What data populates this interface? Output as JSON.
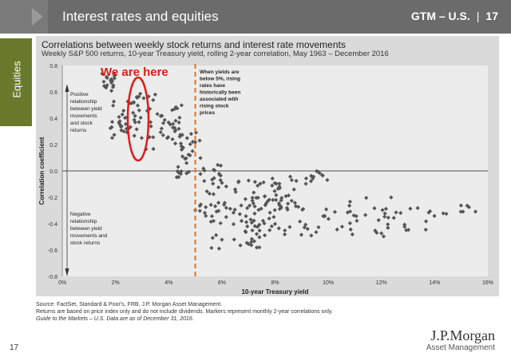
{
  "header": {
    "title": "Interest rates and equities",
    "region": "GTM – U.S.",
    "page": "17"
  },
  "side_tab": "Equities",
  "chart_data": {
    "type": "scatter",
    "title": "Correlations between weekly stock returns and interest rate movements",
    "subtitle": "Weekly S&P 500 returns, 10-year Treasury yield, rolling 2-year correlation, May 1963 – December 2016",
    "xlabel": "10-year Treasury yield",
    "ylabel": "Correlation coefficient",
    "xlim": [
      0,
      16
    ],
    "ylim": [
      -0.8,
      0.8
    ],
    "xticks": [
      "0%",
      "2%",
      "4%",
      "6%",
      "8%",
      "10%",
      "12%",
      "14%",
      "16%"
    ],
    "yticks": [
      "0.8",
      "0.6",
      "0.4",
      "0.2",
      "0.0",
      "-0.2",
      "-0.4",
      "-0.6",
      "-0.8"
    ],
    "marker_color": "#555555",
    "clusters": [
      {
        "x": [
          1.5,
          2.0
        ],
        "y": [
          0.6,
          0.75
        ],
        "n": 18
      },
      {
        "x": [
          1.8,
          2.8
        ],
        "y": [
          0.25,
          0.55
        ],
        "n": 35
      },
      {
        "x": [
          2.8,
          3.5
        ],
        "y": [
          0.15,
          0.6
        ],
        "n": 22
      },
      {
        "x": [
          3.5,
          4.5
        ],
        "y": [
          0.2,
          0.5
        ],
        "n": 30
      },
      {
        "x": [
          4.3,
          5.2
        ],
        "y": [
          -0.05,
          0.3
        ],
        "n": 30
      },
      {
        "x": [
          5.0,
          6.0
        ],
        "y": [
          -0.35,
          0.05
        ],
        "n": 30
      },
      {
        "x": [
          5.5,
          7.5
        ],
        "y": [
          -0.6,
          -0.25
        ],
        "n": 40
      },
      {
        "x": [
          6.0,
          8.5
        ],
        "y": [
          -0.3,
          -0.05
        ],
        "n": 40
      },
      {
        "x": [
          7.0,
          9.0
        ],
        "y": [
          -0.5,
          -0.1
        ],
        "n": 40
      },
      {
        "x": [
          8.5,
          10.0
        ],
        "y": [
          -0.1,
          0.0
        ],
        "n": 15
      },
      {
        "x": [
          9.0,
          11.0
        ],
        "y": [
          -0.5,
          -0.25
        ],
        "n": 20
      },
      {
        "x": [
          10.5,
          12.5
        ],
        "y": [
          -0.5,
          -0.2
        ],
        "n": 18
      },
      {
        "x": [
          12.0,
          14.0
        ],
        "y": [
          -0.45,
          -0.25
        ],
        "n": 18
      },
      {
        "x": [
          14.0,
          15.8
        ],
        "y": [
          -0.35,
          -0.25
        ],
        "n": 8
      }
    ],
    "threshold": {
      "x": 5,
      "color": "#e8701a"
    },
    "annotations": {
      "positive": [
        "Positive",
        "relationship",
        "between yield",
        "movements",
        "and stock",
        "returns"
      ],
      "negative": [
        "Negative",
        "relationship",
        "between yield",
        "movements and",
        "stock returns"
      ],
      "below5": [
        "When yields are",
        "below 5%, rising",
        "rates have",
        "historically been",
        "associated with",
        "rising stock",
        "prices"
      ],
      "callout": "We are here",
      "callout_color": "#e01b1b"
    }
  },
  "footnotes": [
    "Source: FactSet, Standard & Poor's, FRB, J.P. Morgan Asset Management.",
    "Returns are based on price index only and do not include dividends. Markers represent monthly 2-year correlations only.",
    "Guide to the Markets – U.S. Data are as of December 31, 2016."
  ],
  "page_number": "17",
  "logo": {
    "main": "J.P.Morgan",
    "sub": "Asset Management"
  }
}
